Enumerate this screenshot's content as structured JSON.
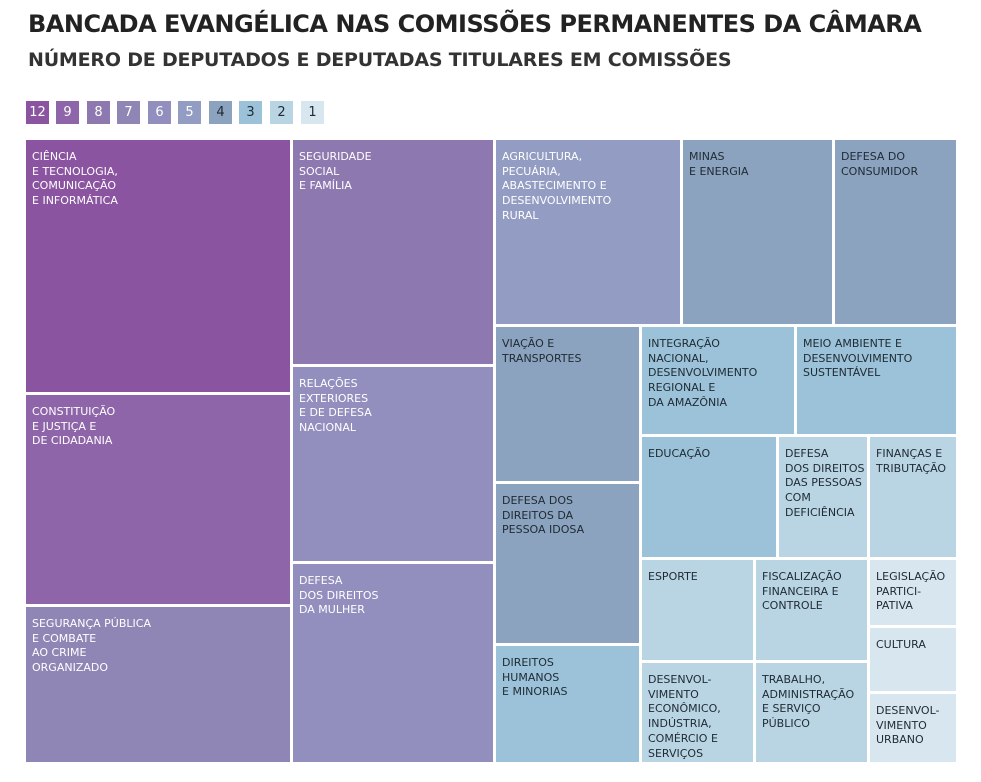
{
  "title": "BANCADA EVANGÉLICA NAS COMISSÕES PERMANENTES DA CÂMARA",
  "subtitle": "NÚMERO DE DEPUTADOS E DEPUTADAS TITULARES EM COMISSÕES",
  "colors": {
    "12": "#8a54a0",
    "9": "#8e65a8",
    "8": "#8e78b0",
    "7": "#8f86b6",
    "6": "#928ebe",
    "5": "#939cc2",
    "4": "#8ba3be",
    "3": "#9bc2d8",
    "2": "#b9d5e3",
    "1": "#d8e7ef",
    "text_dark": "#1f2a33",
    "text_light": "#ffffff"
  },
  "legend": [
    "12",
    "9",
    "8",
    "7",
    "6",
    "5",
    "4",
    "3",
    "2",
    "1"
  ],
  "chart_data": {
    "type": "treemap",
    "title": "BANCADA EVANGÉLICA NAS COMISSÕES PERMANENTES DA CÂMARA",
    "subtitle": "NÚMERO DE DEPUTADOS E DEPUTADAS TITULARES EM COMISSÕES",
    "items": [
      {
        "label": "CIÊNCIA\nE TECNOLOGIA,\nCOMUNICAÇÃO\nE INFORMÁTICA",
        "value": 12
      },
      {
        "label": "CONSTITUIÇÃO\nE JUSTIÇA E\nDE CIDADANIA",
        "value": 9
      },
      {
        "label": "SEGURANÇA PÚBLICA\nE COMBATE\nAO CRIME\nORGANIZADO",
        "value": 7
      },
      {
        "label": "SEGURIDADE\nSOCIAL\nE FAMÍLIA",
        "value": 8
      },
      {
        "label": "RELAÇÕES\nEXTERIORES\nE DE DEFESA\nNACIONAL",
        "value": 6
      },
      {
        "label": "DEFESA\nDOS DIREITOS\nDA MULHER",
        "value": 6
      },
      {
        "label": "AGRICULTURA,\nPECUÁRIA,\nABASTECIMENTO E\nDESENVOLVIMENTO\nRURAL",
        "value": 5
      },
      {
        "label": "MINAS\nE ENERGIA",
        "value": 4
      },
      {
        "label": "DEFESA DO\nCONSUMIDOR",
        "value": 4
      },
      {
        "label": "VIAÇÃO E\nTRANSPORTES",
        "value": 4
      },
      {
        "label": "DEFESA DOS\nDIREITOS DA\nPESSOA IDOSA",
        "value": 4
      },
      {
        "label": "DIREITOS\nHUMANOS\nE MINORIAS",
        "value": 3
      },
      {
        "label": "INTEGRAÇÃO\nNACIONAL,\nDESENVOLVIMENTO\nREGIONAL E\nDA AMAZÔNIA",
        "value": 3
      },
      {
        "label": "MEIO AMBIENTE E\nDESENVOLVIMENTO\nSUSTENTÁVEL",
        "value": 3
      },
      {
        "label": "EDUCAÇÃO",
        "value": 3
      },
      {
        "label": "DEFESA\nDOS DIREITOS\nDAS PESSOAS\nCOM\nDEFICIÊNCIA",
        "value": 2
      },
      {
        "label": "FINANÇAS E\nTRIBUTAÇÃO",
        "value": 2
      },
      {
        "label": "ESPORTE",
        "value": 2
      },
      {
        "label": "FISCALIZAÇÃO\nFINANCEIRA E\nCONTROLE",
        "value": 2
      },
      {
        "label": "DESENVOL-\nVIMENTO\nECONÔMICO,\nINDÚSTRIA,\nCOMÉRCIO E\nSERVIÇOS",
        "value": 2
      },
      {
        "label": "TRABALHO,\nADMINISTRAÇÃO\nE SERVIÇO\nPÚBLICO",
        "value": 2
      },
      {
        "label": "LEGISLAÇÃO\nPARTICI-\nPATIVA",
        "value": 1
      },
      {
        "label": "CULTURA",
        "value": 1
      },
      {
        "label": "DESENVOL-\nVIMENTO\nURBANO",
        "value": 1
      }
    ]
  }
}
